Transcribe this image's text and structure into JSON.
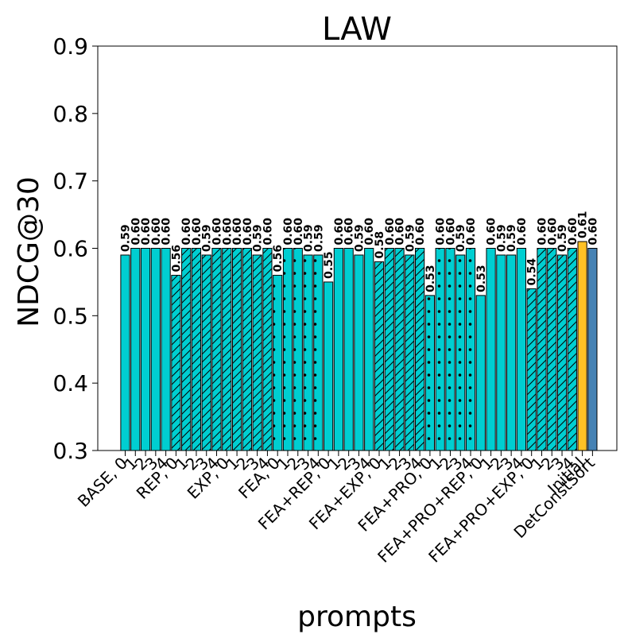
{
  "chart_data": {
    "type": "bar",
    "title": "LAW",
    "xlabel": "prompts",
    "ylabel": "NDCG@30",
    "ylim": [
      0.3,
      0.9
    ],
    "yticks": [
      "0.3",
      "0.4",
      "0.5",
      "0.6",
      "0.7",
      "0.8",
      "0.9"
    ],
    "grid": false,
    "legend": "none",
    "colors": {
      "base": "#00CED1",
      "initial": "#FFC125",
      "detconstsort": "#4682B4",
      "edge": "#000000"
    },
    "x_tick_labels": [
      "BASE, 0",
      "1",
      "2",
      "3",
      "4",
      "REP, 0",
      "1",
      "2",
      "3",
      "4",
      "EXP, 0",
      "1",
      "2",
      "3",
      "4",
      "FEA, 0",
      "1",
      "2",
      "3",
      "4",
      "FEA+REP, 0",
      "1",
      "2",
      "3",
      "4",
      "FEA+EXP, 0",
      "1",
      "2",
      "3",
      "4",
      "FEA+PRO, 0",
      "1",
      "2",
      "3",
      "4",
      "FEA+PRO+REP, 0",
      "1",
      "2",
      "3",
      "4",
      "FEA+PRO+EXP, 0",
      "1",
      "2",
      "3",
      "4",
      "Initial",
      "DetConstSort"
    ],
    "values": [
      0.59,
      0.6,
      0.6,
      0.6,
      0.6,
      0.56,
      0.6,
      0.6,
      0.59,
      0.6,
      0.6,
      0.6,
      0.6,
      0.59,
      0.6,
      0.56,
      0.6,
      0.6,
      0.59,
      0.59,
      0.55,
      0.6,
      0.6,
      0.59,
      0.6,
      0.58,
      0.6,
      0.6,
      0.59,
      0.6,
      0.53,
      0.6,
      0.6,
      0.59,
      0.6,
      0.53,
      0.6,
      0.59,
      0.59,
      0.6,
      0.54,
      0.6,
      0.6,
      0.59,
      0.6,
      0.61,
      0.6
    ],
    "value_labels": [
      "0.59",
      "0.60",
      "0.60",
      "0.60",
      "0.60",
      "0.56",
      "0.60",
      "0.60",
      "0.59",
      "0.60",
      "0.60",
      "0.60",
      "0.60",
      "0.59",
      "0.60",
      "0.56",
      "0.60",
      "0.60",
      "0.59",
      "0.59",
      "0.55",
      "0.60",
      "0.60",
      "0.59",
      "0.60",
      "0.58",
      "0.60",
      "0.60",
      "0.59",
      "0.60",
      "0.53",
      "0.60",
      "0.60",
      "0.59",
      "0.60",
      "0.53",
      "0.60",
      "0.59",
      "0.59",
      "0.60",
      "0.54",
      "0.60",
      "0.60",
      "0.59",
      "0.60",
      "0.61",
      "0.60"
    ],
    "patterns": [
      "none",
      "none",
      "none",
      "none",
      "none",
      "hatch",
      "hatch",
      "hatch",
      "hatch",
      "hatch",
      "hatch",
      "hatch",
      "hatch",
      "hatch",
      "hatch",
      "dots",
      "dots",
      "dots",
      "dots",
      "dots",
      "none",
      "none",
      "none",
      "none",
      "none",
      "hatch",
      "hatch",
      "hatch",
      "hatch",
      "hatch",
      "dots",
      "dots",
      "dots",
      "dots",
      "dots",
      "none",
      "none",
      "none",
      "none",
      "none",
      "hatch",
      "hatch",
      "hatch",
      "hatch",
      "hatch",
      "none",
      "none"
    ],
    "bar_colors": [
      "base",
      "base",
      "base",
      "base",
      "base",
      "base",
      "base",
      "base",
      "base",
      "base",
      "base",
      "base",
      "base",
      "base",
      "base",
      "base",
      "base",
      "base",
      "base",
      "base",
      "base",
      "base",
      "base",
      "base",
      "base",
      "base",
      "base",
      "base",
      "base",
      "base",
      "base",
      "base",
      "base",
      "base",
      "base",
      "base",
      "base",
      "base",
      "base",
      "base",
      "base",
      "base",
      "base",
      "base",
      "base",
      "initial",
      "detconstsort"
    ]
  }
}
